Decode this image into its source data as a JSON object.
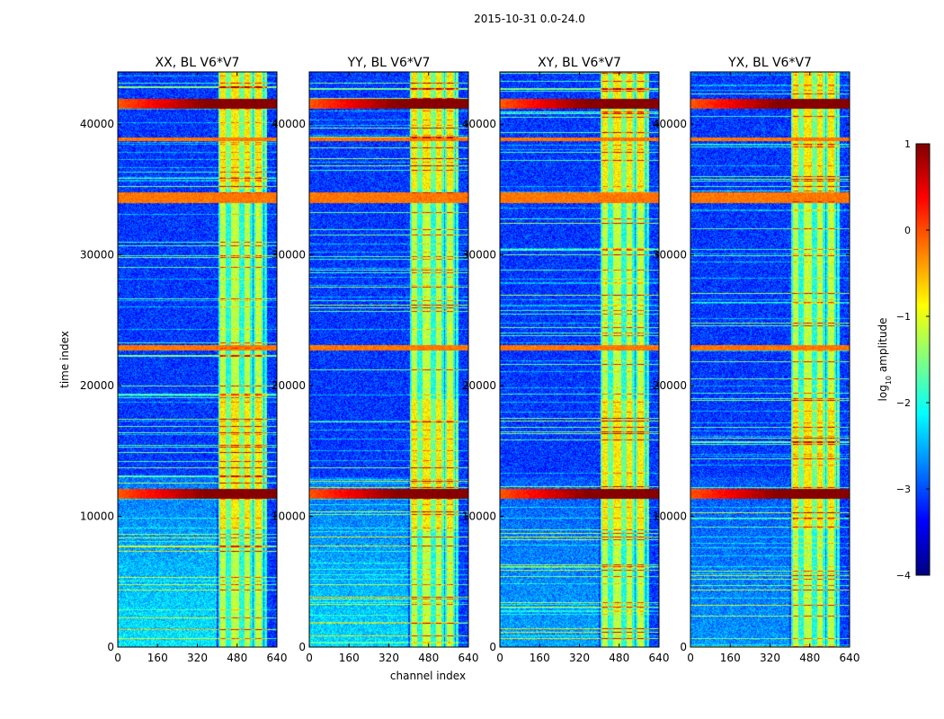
{
  "chart_data": {
    "type": "heatmap",
    "suptitle": "2015-10-31 0.0-24.0",
    "xlabel": "channel index",
    "ylabel": "time index",
    "x_range": [
      0,
      640
    ],
    "y_range": [
      0,
      44000
    ],
    "x_ticks": [
      "0",
      "160",
      "320",
      "480",
      "640"
    ],
    "x_tick_values": [
      0,
      160,
      320,
      480,
      640
    ],
    "y_ticks": [
      "0",
      "10000",
      "20000",
      "30000",
      "40000"
    ],
    "y_tick_values": [
      0,
      10000,
      20000,
      30000,
      40000
    ],
    "panels": [
      {
        "title": "XX, BL V6*V7",
        "strong_low_band": 1.0
      },
      {
        "title": "YY, BL V6*V7",
        "strong_low_band": 0.9
      },
      {
        "title": "XY, BL V6*V7",
        "strong_low_band": 0.6
      },
      {
        "title": "YX, BL V6*V7",
        "strong_low_band": 0.5
      }
    ],
    "colorbar": {
      "label": "log10 amplitude",
      "label_main": "log",
      "label_sub": "10",
      "label_rest": " amplitude",
      "min": -4,
      "max": 1,
      "ticks": [
        "1",
        "0",
        "−1",
        "−2",
        "−3",
        "−4"
      ],
      "tick_values": [
        1,
        0,
        -1,
        -2,
        -3,
        -4
      ],
      "colormap": [
        "#00007f",
        "#0000ff",
        "#007fff",
        "#00ffff",
        "#7fff7f",
        "#ffff00",
        "#ff7f00",
        "#ff0000",
        "#7f0000"
      ]
    },
    "rfi_columns_channel": [
      405,
      440,
      450,
      495,
      505,
      540,
      550,
      585,
      595
    ],
    "strong_time_bands": [
      [
        11300,
        12100
      ],
      [
        41200,
        42000
      ]
    ],
    "medium_time_bands": [
      [
        22700,
        23100
      ],
      [
        34000,
        34800
      ],
      [
        38700,
        39000
      ]
    ]
  }
}
